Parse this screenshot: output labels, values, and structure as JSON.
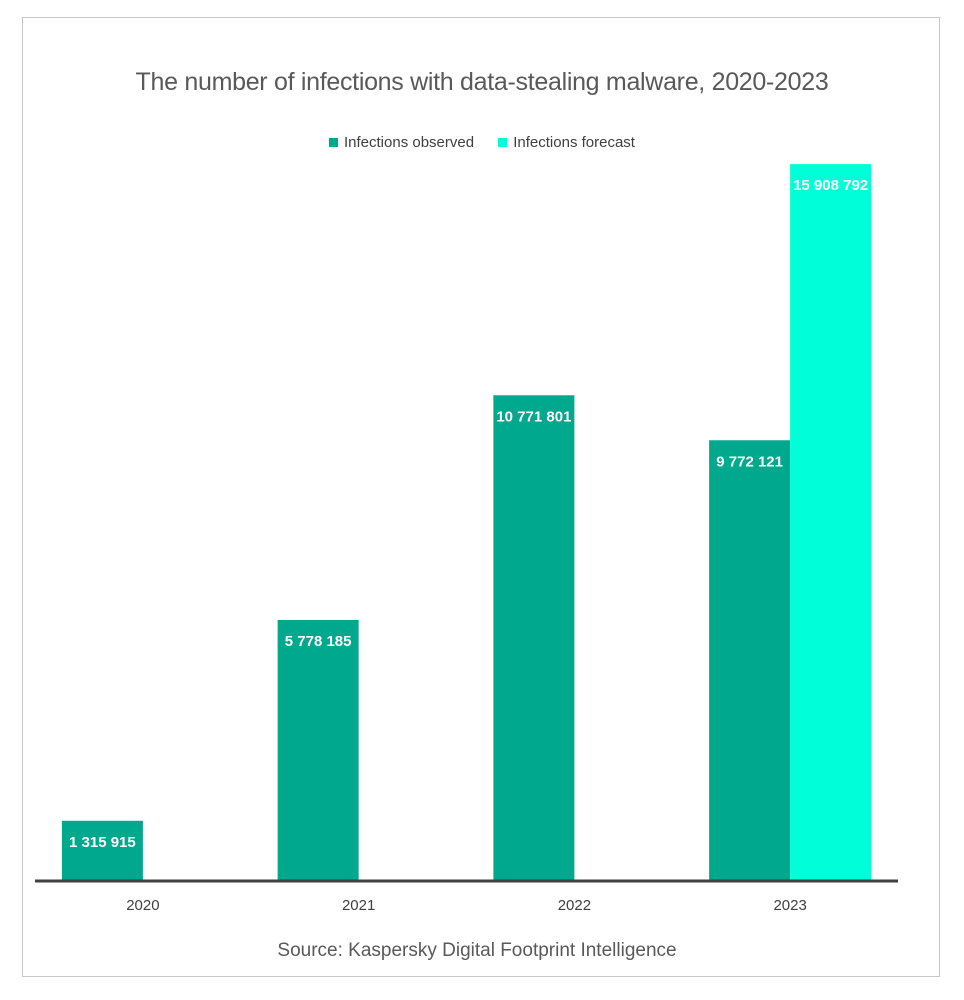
{
  "chart_data": {
    "type": "bar",
    "title": "The number of infections with data-stealing malware, 2020-2023",
    "categories": [
      "2020",
      "2021",
      "2022",
      "2023"
    ],
    "series": [
      {
        "name": "Infections observed",
        "color": "#00a88e",
        "values": [
          1315915,
          5778185,
          10771801,
          9772121
        ],
        "labels": [
          "1 315 915",
          "5 778 185",
          "10 771 801",
          "9 772 121"
        ]
      },
      {
        "name": "Infections forecast",
        "color": "#00ffd9",
        "values": [
          null,
          null,
          null,
          15908792
        ],
        "labels": [
          null,
          null,
          null,
          "15 908 792"
        ]
      }
    ],
    "xlabel": "",
    "ylabel": "",
    "ylim": [
      0,
      16000000
    ],
    "grid": false,
    "legend_position": "top-center",
    "source": "Source: Kaspersky Digital Footprint Intelligence"
  }
}
